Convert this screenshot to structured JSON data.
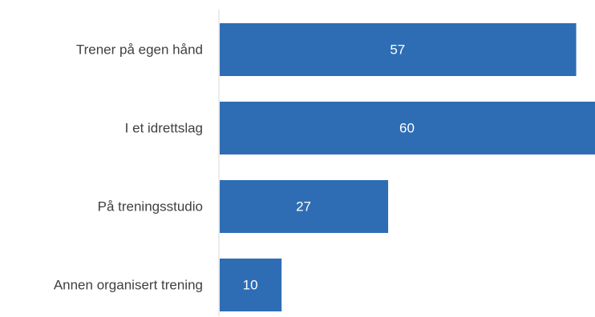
{
  "chart_data": {
    "type": "bar",
    "orientation": "horizontal",
    "categories": [
      "Trener på egen hånd",
      "I et idrettslag",
      "På treningsstudio",
      "Annen organisert trening"
    ],
    "values": [
      57,
      60,
      27,
      10
    ],
    "data_labels": [
      "57",
      "60",
      "27",
      "10"
    ],
    "title": "",
    "xlabel": "",
    "ylabel": "",
    "xlim": [
      0,
      60
    ],
    "grid": false,
    "legend": "none",
    "colors": {
      "bar": "#2e6db4",
      "axis": "#d9d9d9",
      "label": "#404040",
      "value_label": "#ffffff"
    }
  }
}
